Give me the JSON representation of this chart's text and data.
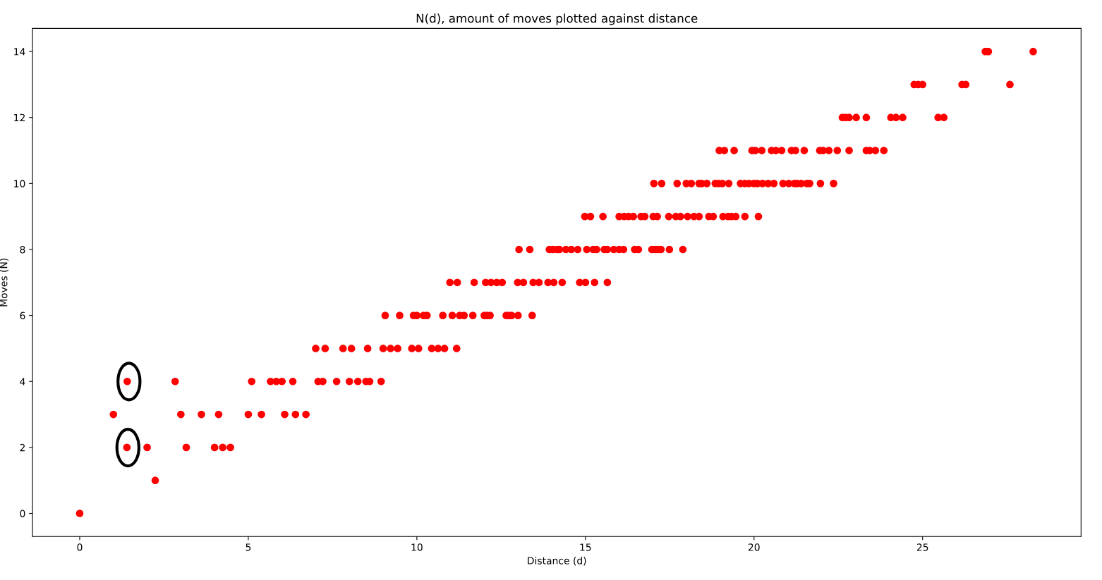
{
  "chart_data": {
    "type": "scatter",
    "title": "N(d), amount of moves plotted against distance",
    "xlabel": "Distance (d)",
    "ylabel": "Moves (N)",
    "xlim": [
      -1.4,
      29.7
    ],
    "ylim": [
      -0.7,
      14.7
    ],
    "xticks": [
      0,
      5,
      10,
      15,
      20,
      25
    ],
    "yticks": [
      0,
      2,
      4,
      6,
      8,
      10,
      12,
      14
    ],
    "grid": false,
    "legend": false,
    "marker": "circle",
    "series": [
      {
        "color": "#ff0000",
        "x": [
          0,
          2.24,
          1.4,
          2.0,
          3.16,
          4.0,
          4.24,
          4.47,
          1.0,
          3.0,
          3.61,
          4.12,
          5.0,
          5.39,
          6.08,
          6.4,
          6.71,
          1.41,
          2.83,
          5.1,
          5.66,
          5.83,
          6.0,
          6.32,
          7.07,
          7.21,
          7.62,
          8.0,
          8.25,
          8.49,
          8.6,
          8.94,
          7.0,
          7.28,
          7.81,
          8.06,
          8.54,
          9.0,
          9.22,
          9.43,
          9.85,
          10.05,
          10.44,
          10.63,
          10.82,
          11.18,
          9.06,
          9.49,
          9.9,
          10.0,
          10.2,
          10.3,
          10.77,
          11.05,
          11.27,
          11.4,
          11.66,
          12.0,
          12.08,
          12.17,
          12.65,
          12.73,
          12.81,
          13.0,
          13.42,
          10.98,
          11.2,
          11.7,
          12.04,
          12.2,
          12.37,
          12.53,
          12.99,
          13.16,
          13.45,
          13.62,
          13.89,
          14.06,
          14.31,
          14.83,
          15.0,
          15.27,
          15.65,
          13.03,
          13.35,
          13.93,
          14.04,
          14.16,
          14.23,
          14.42,
          14.58,
          14.77,
          15.04,
          15.23,
          15.33,
          15.56,
          15.65,
          15.84,
          16.0,
          16.13,
          16.46,
          16.57,
          16.97,
          17.07,
          17.15,
          17.24,
          17.49,
          17.89,
          14.98,
          15.15,
          15.52,
          16.0,
          16.15,
          16.28,
          16.42,
          16.65,
          16.76,
          17.01,
          17.13,
          17.47,
          17.68,
          17.82,
          18.03,
          18.22,
          18.37,
          18.66,
          18.79,
          19.08,
          19.23,
          19.33,
          19.46,
          19.73,
          20.13,
          17.03,
          17.26,
          17.72,
          17.99,
          18.14,
          18.37,
          18.45,
          18.6,
          18.85,
          18.95,
          19.06,
          19.25,
          19.6,
          19.73,
          19.85,
          20.0,
          20.1,
          20.25,
          20.42,
          20.59,
          20.86,
          21.03,
          21.2,
          21.28,
          21.4,
          21.57,
          21.65,
          21.97,
          22.36,
          18.97,
          19.12,
          19.41,
          19.94,
          20.04,
          20.23,
          20.52,
          20.65,
          20.82,
          21.11,
          21.23,
          21.49,
          21.95,
          22.05,
          22.22,
          22.47,
          22.82,
          23.33,
          23.43,
          23.6,
          23.85,
          22.62,
          22.72,
          22.82,
          23.03,
          23.33,
          24.06,
          24.21,
          24.41,
          25.46,
          25.63,
          24.75,
          24.87,
          25.0,
          26.17,
          26.28,
          27.59,
          26.86,
          26.95,
          28.28
        ],
        "values": [
          0,
          1,
          2,
          2,
          2,
          2,
          2,
          2,
          3,
          3,
          3,
          3,
          3,
          3,
          3,
          3,
          3,
          4,
          4,
          4,
          4,
          4,
          4,
          4,
          4,
          4,
          4,
          4,
          4,
          4,
          4,
          4,
          5,
          5,
          5,
          5,
          5,
          5,
          5,
          5,
          5,
          5,
          5,
          5,
          5,
          5,
          6,
          6,
          6,
          6,
          6,
          6,
          6,
          6,
          6,
          6,
          6,
          6,
          6,
          6,
          6,
          6,
          6,
          6,
          6,
          7,
          7,
          7,
          7,
          7,
          7,
          7,
          7,
          7,
          7,
          7,
          7,
          7,
          7,
          7,
          7,
          7,
          7,
          8,
          8,
          8,
          8,
          8,
          8,
          8,
          8,
          8,
          8,
          8,
          8,
          8,
          8,
          8,
          8,
          8,
          8,
          8,
          8,
          8,
          8,
          8,
          8,
          8,
          9,
          9,
          9,
          9,
          9,
          9,
          9,
          9,
          9,
          9,
          9,
          9,
          9,
          9,
          9,
          9,
          9,
          9,
          9,
          9,
          9,
          9,
          9,
          9,
          9,
          10,
          10,
          10,
          10,
          10,
          10,
          10,
          10,
          10,
          10,
          10,
          10,
          10,
          10,
          10,
          10,
          10,
          10,
          10,
          10,
          10,
          10,
          10,
          10,
          10,
          10,
          10,
          10,
          10,
          11,
          11,
          11,
          11,
          11,
          11,
          11,
          11,
          11,
          11,
          11,
          11,
          11,
          11,
          11,
          11,
          11,
          11,
          11,
          11,
          11,
          12,
          12,
          12,
          12,
          12,
          12,
          12,
          12,
          12,
          12,
          13,
          13,
          13,
          13,
          13,
          13,
          14,
          14,
          14
        ]
      }
    ]
  }
}
